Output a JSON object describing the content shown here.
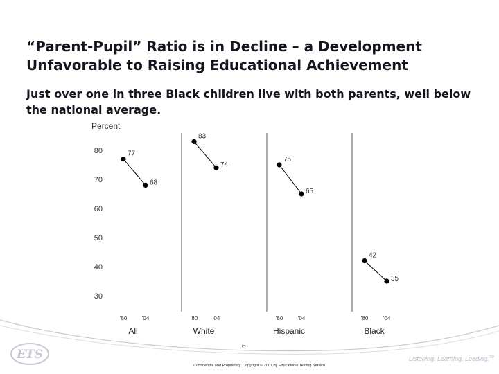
{
  "slide": {
    "title": "“Parent-Pupil” Ratio is in Decline – a Development Unfavorable to Raising Educational Achievement",
    "subtitle": "Just over one in three Black children live with both parents, well below the national average.",
    "page_number": "6",
    "copyright": "Confidential and Proprietary. Copyright © 2007 by Educational Testing Service.",
    "tagline": "Listening. Learning. Leading.",
    "tagline_mark": "TM",
    "logo_text": "ETS"
  },
  "chart_data": {
    "type": "line",
    "ylabel": "Percent",
    "yticks": [
      30,
      40,
      50,
      60,
      70,
      80
    ],
    "ylim": [
      27,
      90
    ],
    "x_tick_labels": [
      "’80",
      "’04"
    ],
    "panels": [
      {
        "name": "All",
        "x": [
          "’80",
          "’04"
        ],
        "values": [
          77,
          68
        ]
      },
      {
        "name": "White",
        "x": [
          "’80",
          "’04"
        ],
        "values": [
          83,
          74
        ]
      },
      {
        "name": "Hispanic",
        "x": [
          "’80",
          "’04"
        ],
        "values": [
          75,
          65
        ]
      },
      {
        "name": "Black",
        "x": [
          "’80",
          "’04"
        ],
        "values": [
          42,
          35
        ]
      }
    ],
    "grid": false,
    "colors": {
      "line": "#000000",
      "divider": "#555555",
      "text": "#333333"
    }
  }
}
